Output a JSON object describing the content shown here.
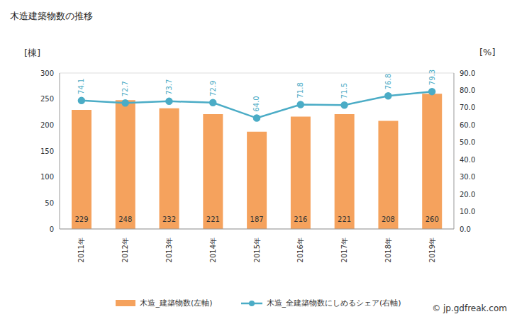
{
  "chart_data": {
    "type": "bar",
    "title": "木造建築物数の推移",
    "y_label": "[棟]",
    "y2_label": "[%]",
    "source": "© jp.gdfreak.com",
    "categories": [
      "2011年",
      "2012年",
      "2013年",
      "2014年",
      "2015年",
      "2016年",
      "2017年",
      "2018年",
      "2019年"
    ],
    "series": [
      {
        "name": "木造_建築物数(左軸)",
        "type": "bar",
        "color": "#f5a25d",
        "values": [
          229,
          248,
          232,
          221,
          187,
          216,
          221,
          208,
          260
        ],
        "data_labels": true
      },
      {
        "name": "木造_全建築物数にしめるシェア(右軸)",
        "type": "line",
        "axis": "y2",
        "color": "#4bacc6",
        "marker": "circle",
        "values": [
          74.1,
          72.7,
          73.7,
          72.9,
          64.0,
          71.8,
          71.5,
          76.8,
          79.3
        ],
        "value_labels": [
          "74.1",
          "72.7",
          "73.7",
          "72.9",
          "64.0",
          "71.8",
          "71.5",
          "76.8",
          "79.3"
        ],
        "data_labels": true
      }
    ],
    "ylim": [
      0,
      300
    ],
    "yticks": [
      0,
      50,
      100,
      150,
      200,
      250,
      300
    ],
    "y2lim": [
      0,
      90
    ],
    "y2ticks": [
      {
        "value": 0,
        "label": "0.0"
      },
      {
        "value": 10,
        "label": "10.0"
      },
      {
        "value": 20,
        "label": "20.0"
      },
      {
        "value": 30,
        "label": "30.0"
      },
      {
        "value": 40,
        "label": "40.0"
      },
      {
        "value": 50,
        "label": "50.0"
      },
      {
        "value": 60,
        "label": "60.0"
      },
      {
        "value": 70,
        "label": "70.0"
      },
      {
        "value": 80,
        "label": "80.0"
      },
      {
        "value": 90,
        "label": "90.0"
      }
    ],
    "grid": true,
    "legend": "bottom"
  }
}
